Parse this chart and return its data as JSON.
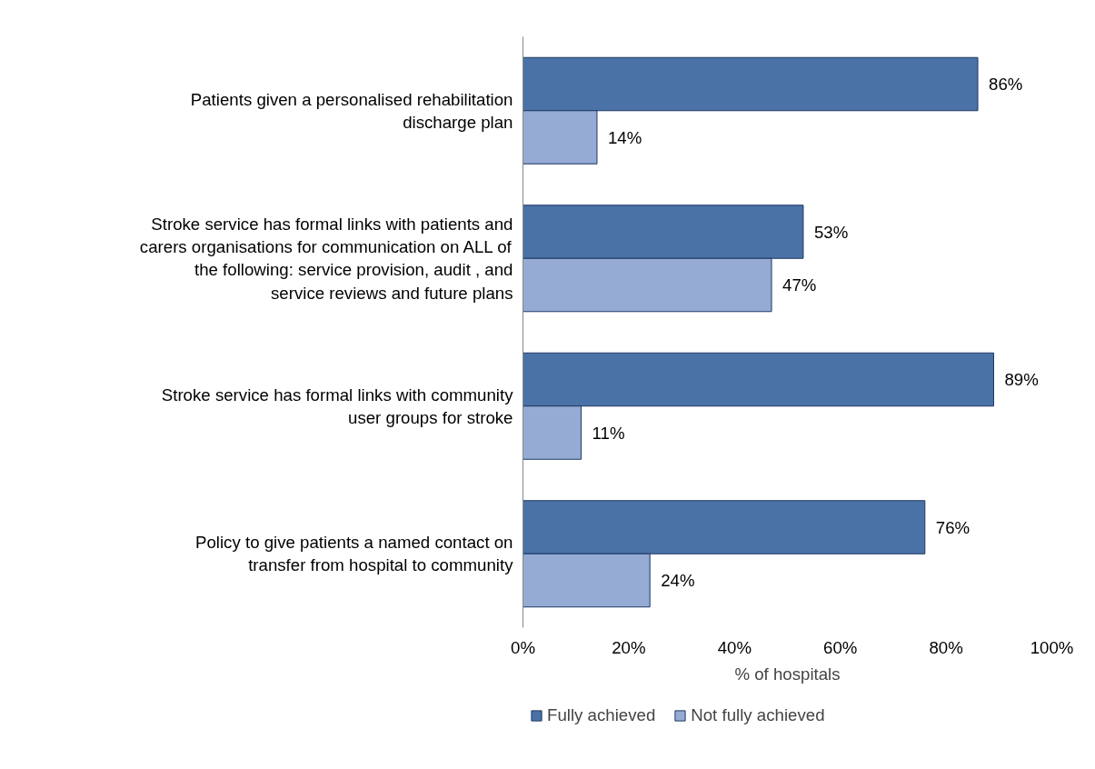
{
  "chart_data": {
    "type": "bar",
    "orientation": "horizontal",
    "xlabel": "% of hospitals",
    "categories": [
      "Patients given a personalised rehabilitation discharge plan",
      "Stroke service has formal links with patients and carers organisations for communication on ALL of the following: service provision, audit , and service reviews and future plans",
      "Stroke service has formal links with community user groups for stroke",
      "Policy to give patients a named contact on transfer from hospital to community"
    ],
    "series": [
      {
        "name": "Fully achieved",
        "color": "#4a72a6",
        "values": [
          86,
          53,
          89,
          76
        ],
        "value_labels": [
          "86%",
          "53%",
          "89%",
          "76%"
        ]
      },
      {
        "name": "Not fully achieved",
        "color": "#95abd4",
        "values": [
          14,
          47,
          11,
          24
        ],
        "value_labels": [
          "14%",
          "47%",
          "11%",
          "24%"
        ]
      }
    ],
    "xlim": [
      0,
      100
    ],
    "xticks": [
      {
        "value": 0,
        "label": "0%"
      },
      {
        "value": 20,
        "label": "20%"
      },
      {
        "value": 40,
        "label": "40%"
      },
      {
        "value": 60,
        "label": "60%"
      },
      {
        "value": 80,
        "label": "80%"
      },
      {
        "value": 100,
        "label": "100%"
      }
    ],
    "grid": false,
    "legend": "bottom left"
  }
}
